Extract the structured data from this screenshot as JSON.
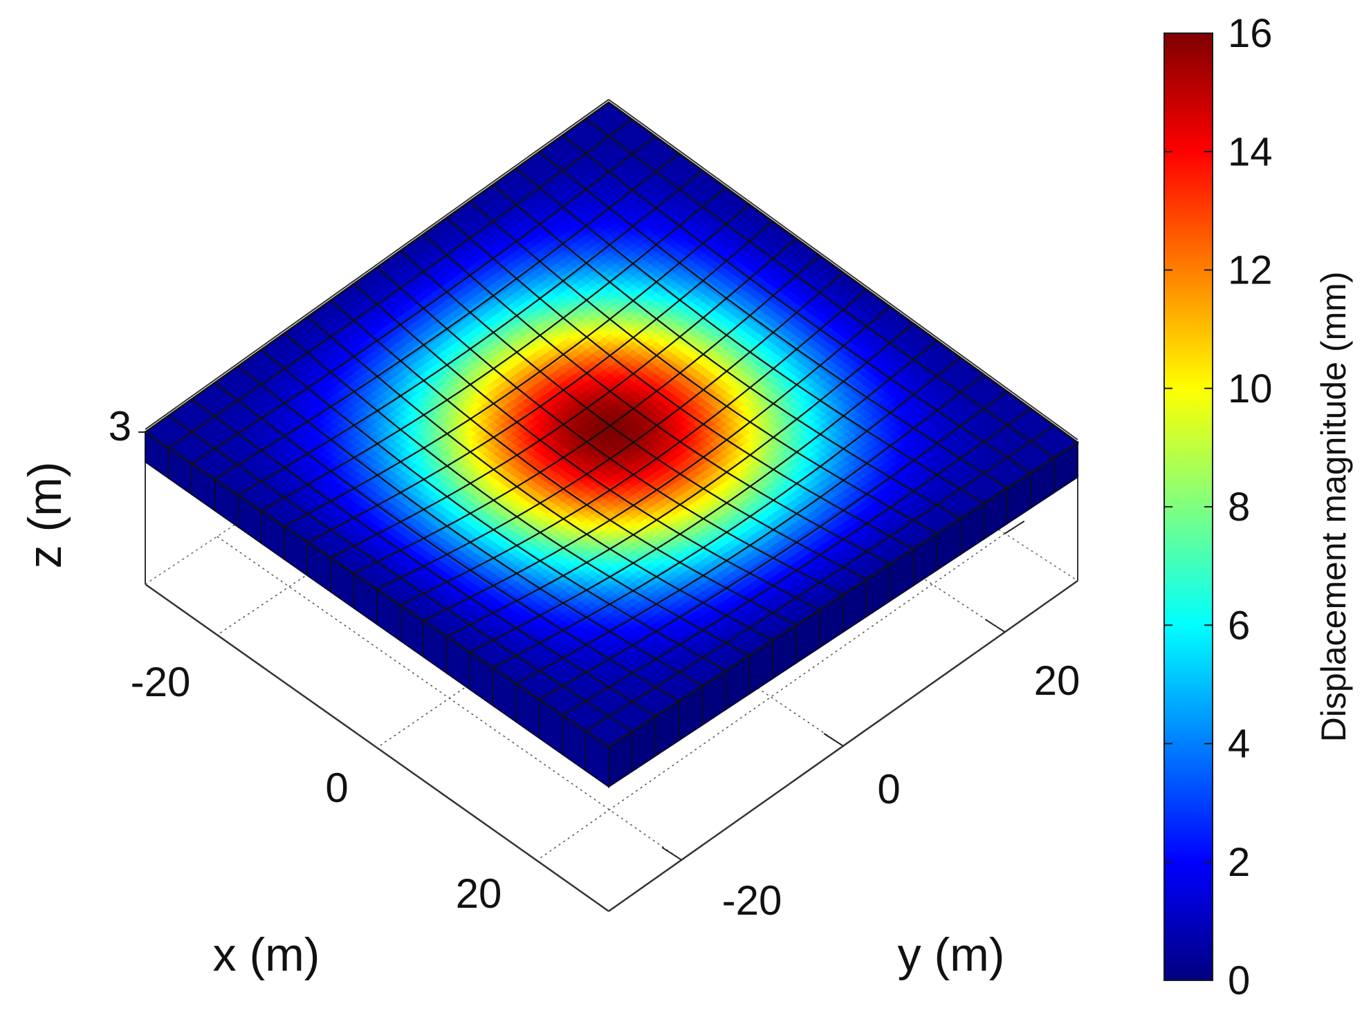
{
  "chart_data": {
    "type": "surface3d",
    "title": "",
    "xlabel": "x (m)",
    "ylabel": "y (m)",
    "zlabel": "z (m)",
    "x_ticks": [
      "-20",
      "0",
      "20"
    ],
    "x_tick_values": [
      -20,
      0,
      20
    ],
    "y_ticks": [
      "-20",
      "0",
      "20"
    ],
    "y_tick_values": [
      -20,
      0,
      20
    ],
    "z_ticks": [
      "3"
    ],
    "z_tick_values": [
      3
    ],
    "xlim": [
      -29,
      29
    ],
    "ylim": [
      -29,
      29
    ],
    "mesh_divisions": 20,
    "peak_value": 16,
    "peak_location": [
      0,
      0
    ],
    "edge_value": 0.5,
    "colormap": "jet",
    "colorbar": {
      "label": "Displacement magnitude (mm)",
      "ticks": [
        "0",
        "2",
        "4",
        "6",
        "8",
        "10",
        "12",
        "14",
        "16"
      ],
      "tick_values": [
        0,
        2,
        4,
        6,
        8,
        10,
        12,
        14,
        16
      ],
      "range": [
        0,
        16
      ],
      "colors": [
        "#00007f",
        "#0000ff",
        "#007fff",
        "#00ffff",
        "#7fff7f",
        "#ffff00",
        "#ff7f00",
        "#ff0000",
        "#7f0000"
      ]
    },
    "grid": true,
    "box": true
  }
}
